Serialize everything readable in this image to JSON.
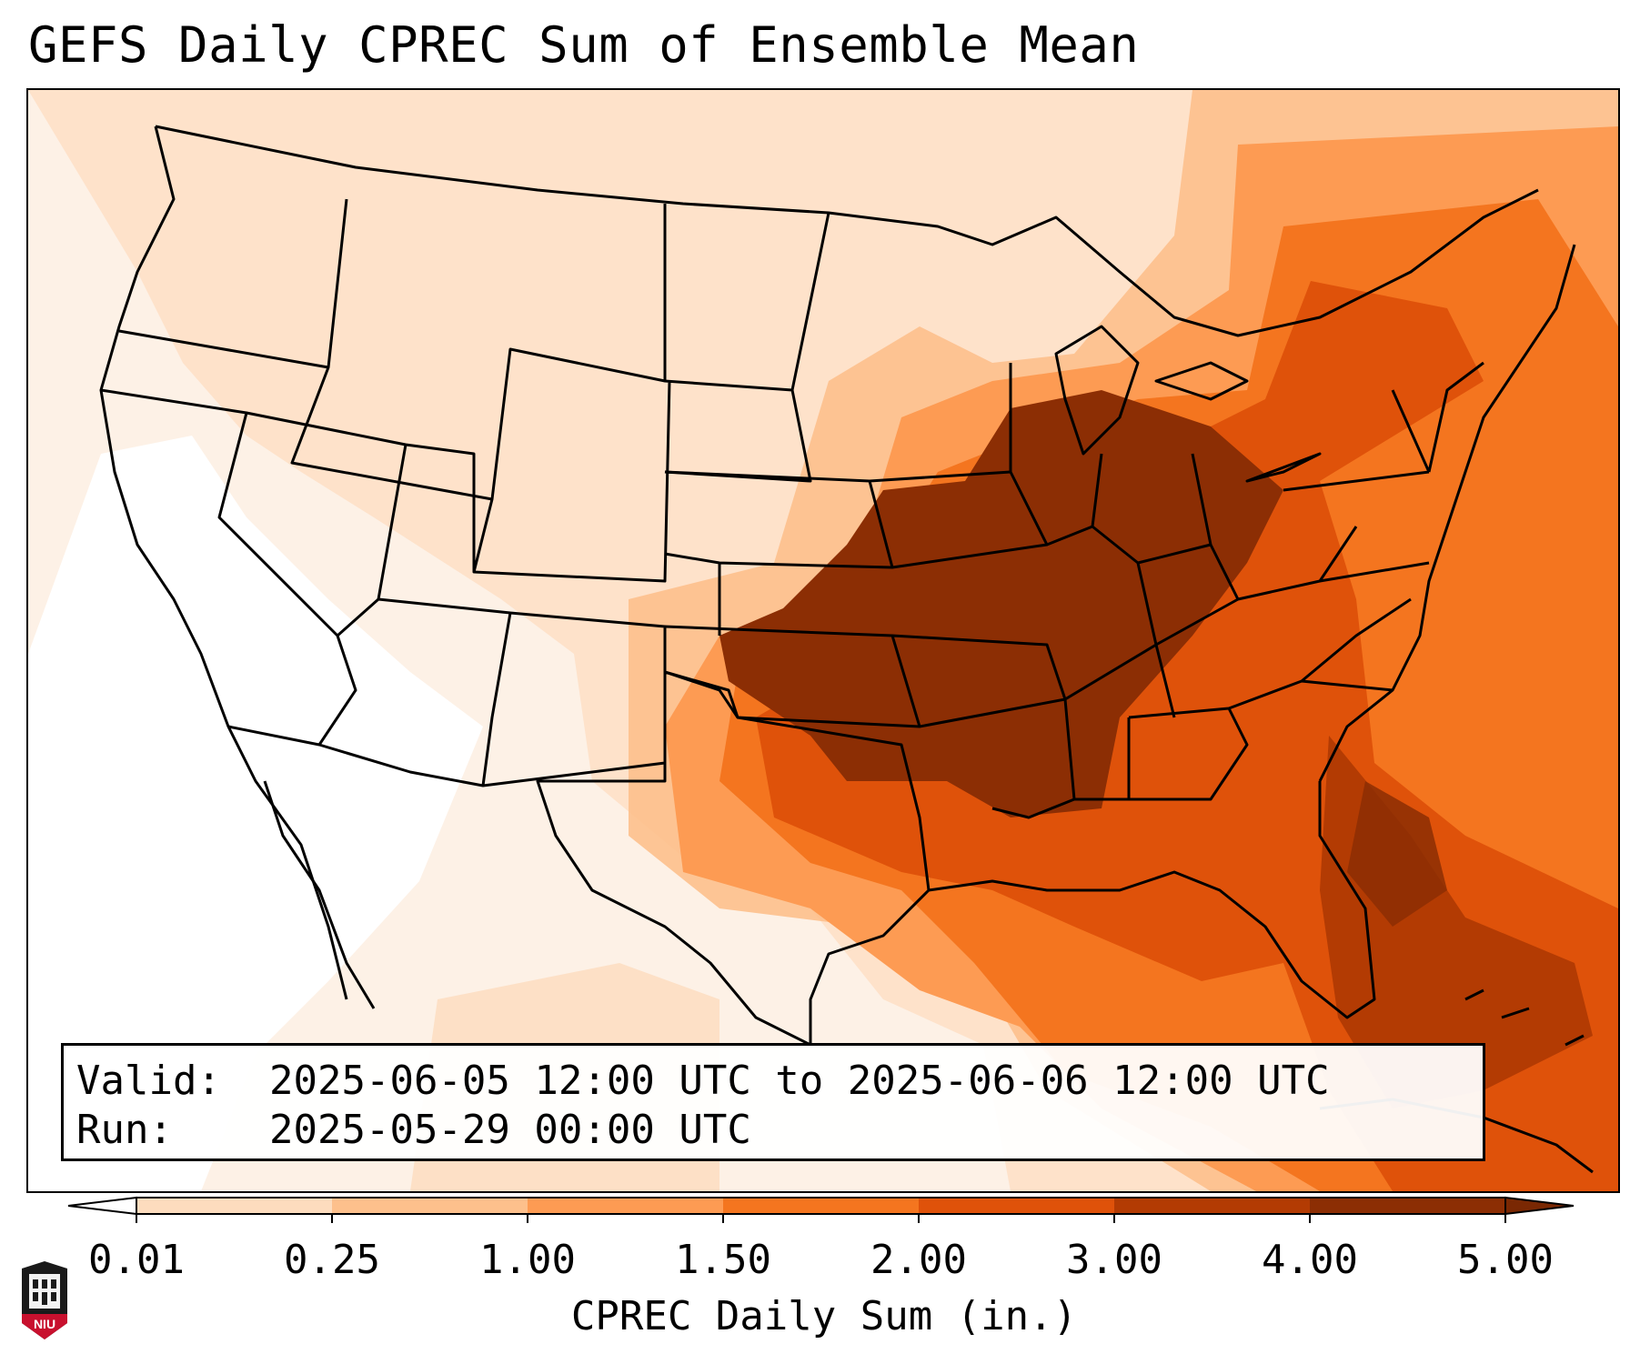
{
  "header": {
    "title": "GEFS Daily CPREC Sum of Ensemble Mean"
  },
  "info": {
    "valid_label": "Valid:",
    "valid_value": "2025-06-05 12:00 UTC to 2025-06-06 12:00 UTC",
    "run_label": "Run:",
    "run_value": "2025-05-29 00:00 UTC"
  },
  "colorbar": {
    "label": "CPREC Daily Sum (in.)",
    "ticks": [
      "0.01",
      "0.25",
      "1.00",
      "1.50",
      "2.00",
      "3.00",
      "4.00",
      "5.00"
    ],
    "colors": [
      "#fdf1e6",
      "#fddcbe",
      "#fdc08c",
      "#fd9b53",
      "#f4751f",
      "#df520a",
      "#b33b03",
      "#8c2e04"
    ],
    "under_color": "#ffffff",
    "over_color": "#7a2803"
  },
  "logo": {
    "text": "NIU",
    "color": "#c8102e"
  }
}
